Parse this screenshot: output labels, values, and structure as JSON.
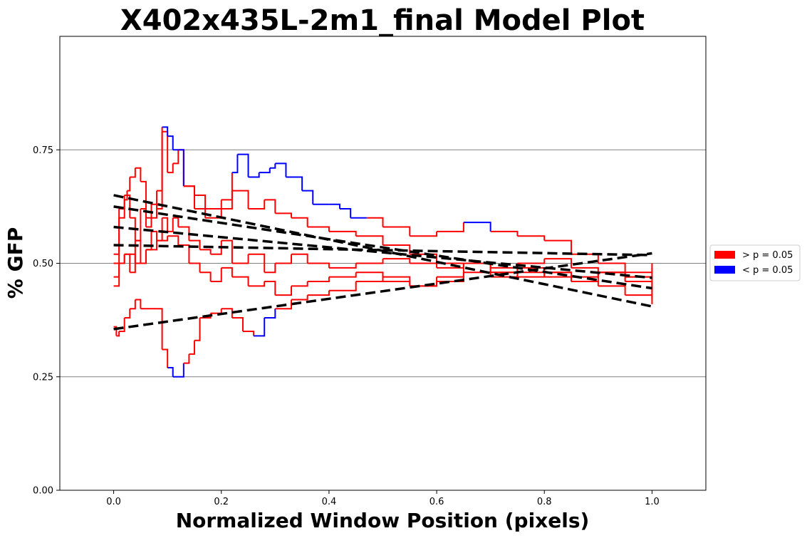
{
  "chart_data": {
    "type": "line",
    "title": "X402x435L-2m1_final Model Plot",
    "xlabel": "Normalized Window Position (pixels)",
    "ylabel": "% GFP",
    "xlim": [
      -0.1,
      1.1
    ],
    "ylim": [
      0.0,
      1.0
    ],
    "x_ticks": [
      0.0,
      0.2,
      0.4,
      0.6,
      0.8,
      1.0
    ],
    "x_tick_labels": [
      "0.0",
      "0.2",
      "0.4",
      "0.6",
      "0.8",
      "1.0"
    ],
    "y_ticks": [
      0.0,
      0.25,
      0.5,
      0.75
    ],
    "y_tick_labels": [
      "0.00",
      "0.25",
      "0.50",
      "0.75"
    ],
    "hlines": [
      0.25,
      0.5,
      0.75
    ],
    "hline_color": "#808080",
    "significant_color": "#0000ff",
    "nonsignificant_color": "#ff0000",
    "fit_color": "#000000",
    "legend": {
      "position": "right",
      "entries": [
        {
          "label": "> p = 0.05",
          "color": "#ff0000"
        },
        {
          "label": "< p = 0.05",
          "color": "#0000ff"
        }
      ]
    },
    "fit_lines": [
      {
        "x": [
          0.0,
          1.0
        ],
        "y": [
          0.65,
          0.405
        ]
      },
      {
        "x": [
          0.0,
          1.0
        ],
        "y": [
          0.625,
          0.445
        ]
      },
      {
        "x": [
          0.0,
          1.0
        ],
        "y": [
          0.58,
          0.468
        ]
      },
      {
        "x": [
          0.0,
          1.0
        ],
        "y": [
          0.54,
          0.518
        ]
      },
      {
        "x": [
          0.0,
          1.0
        ],
        "y": [
          0.355,
          0.522
        ]
      }
    ],
    "series": [
      {
        "points": [
          [
            0.0,
            0.47
          ],
          [
            0.01,
            0.62
          ],
          [
            0.02,
            0.64
          ],
          [
            0.025,
            0.66
          ],
          [
            0.03,
            0.69
          ],
          [
            0.04,
            0.71
          ],
          [
            0.05,
            0.68
          ],
          [
            0.06,
            0.6
          ],
          [
            0.07,
            0.63
          ],
          [
            0.08,
            0.62
          ],
          [
            0.09,
            0.79
          ],
          [
            0.1,
            0.7
          ],
          [
            0.11,
            0.72
          ],
          [
            0.12,
            0.75
          ],
          [
            0.13,
            0.67
          ],
          [
            0.15,
            0.62
          ],
          [
            0.17,
            0.6
          ],
          [
            0.2,
            0.62
          ],
          [
            0.22,
            0.66
          ],
          [
            0.25,
            0.62
          ],
          [
            0.28,
            0.64
          ],
          [
            0.3,
            0.61
          ],
          [
            0.33,
            0.6
          ],
          [
            0.36,
            0.58
          ],
          [
            0.4,
            0.57
          ],
          [
            0.45,
            0.56
          ],
          [
            0.5,
            0.54
          ],
          [
            0.55,
            0.52
          ],
          [
            0.6,
            0.5
          ],
          [
            0.65,
            0.5
          ],
          [
            0.7,
            0.49
          ],
          [
            0.75,
            0.49
          ],
          [
            0.8,
            0.48
          ],
          [
            0.85,
            0.46
          ],
          [
            0.9,
            0.45
          ],
          [
            0.95,
            0.43
          ],
          [
            1.0,
            0.41
          ]
        ],
        "significant": [
          false,
          false,
          false,
          false,
          false,
          false,
          false,
          false,
          false,
          false,
          false,
          false,
          false,
          false,
          false,
          false,
          false,
          false,
          false,
          false,
          false,
          false,
          false,
          false,
          false,
          false,
          false,
          false,
          false,
          false,
          false,
          false,
          false,
          false,
          false,
          false,
          false
        ]
      },
      {
        "points": [
          [
            0.0,
            0.52
          ],
          [
            0.01,
            0.6
          ],
          [
            0.02,
            0.65
          ],
          [
            0.03,
            0.6
          ],
          [
            0.04,
            0.55
          ],
          [
            0.05,
            0.62
          ],
          [
            0.06,
            0.58
          ],
          [
            0.07,
            0.6
          ],
          [
            0.08,
            0.66
          ],
          [
            0.09,
            0.8
          ],
          [
            0.1,
            0.78
          ],
          [
            0.11,
            0.75
          ],
          [
            0.12,
            0.75
          ],
          [
            0.13,
            0.67
          ],
          [
            0.15,
            0.65
          ],
          [
            0.17,
            0.62
          ],
          [
            0.2,
            0.64
          ],
          [
            0.22,
            0.7
          ],
          [
            0.23,
            0.74
          ],
          [
            0.25,
            0.69
          ],
          [
            0.27,
            0.7
          ],
          [
            0.29,
            0.71
          ],
          [
            0.3,
            0.72
          ],
          [
            0.32,
            0.69
          ],
          [
            0.35,
            0.66
          ],
          [
            0.37,
            0.63
          ],
          [
            0.4,
            0.63
          ],
          [
            0.42,
            0.62
          ],
          [
            0.44,
            0.6
          ],
          [
            0.47,
            0.6
          ],
          [
            0.5,
            0.58
          ],
          [
            0.55,
            0.56
          ],
          [
            0.6,
            0.57
          ],
          [
            0.65,
            0.59
          ],
          [
            0.7,
            0.57
          ],
          [
            0.75,
            0.56
          ],
          [
            0.8,
            0.55
          ],
          [
            0.85,
            0.52
          ],
          [
            0.9,
            0.5
          ],
          [
            0.95,
            0.48
          ],
          [
            1.0,
            0.5
          ]
        ],
        "significant": [
          false,
          false,
          false,
          false,
          false,
          false,
          false,
          false,
          false,
          true,
          true,
          true,
          true,
          false,
          false,
          false,
          false,
          true,
          true,
          true,
          true,
          true,
          true,
          true,
          true,
          true,
          true,
          true,
          true,
          false,
          false,
          false,
          false,
          true,
          false,
          false,
          false,
          false,
          false,
          false,
          false
        ]
      },
      {
        "points": [
          [
            0.0,
            0.45
          ],
          [
            0.01,
            0.5
          ],
          [
            0.02,
            0.52
          ],
          [
            0.03,
            0.48
          ],
          [
            0.04,
            0.55
          ],
          [
            0.05,
            0.5
          ],
          [
            0.06,
            0.53
          ],
          [
            0.07,
            0.57
          ],
          [
            0.08,
            0.55
          ],
          [
            0.09,
            0.6
          ],
          [
            0.1,
            0.57
          ],
          [
            0.11,
            0.6
          ],
          [
            0.12,
            0.58
          ],
          [
            0.14,
            0.55
          ],
          [
            0.16,
            0.53
          ],
          [
            0.18,
            0.52
          ],
          [
            0.2,
            0.55
          ],
          [
            0.22,
            0.5
          ],
          [
            0.25,
            0.52
          ],
          [
            0.28,
            0.48
          ],
          [
            0.3,
            0.5
          ],
          [
            0.33,
            0.52
          ],
          [
            0.36,
            0.5
          ],
          [
            0.4,
            0.49
          ],
          [
            0.45,
            0.5
          ],
          [
            0.5,
            0.51
          ],
          [
            0.55,
            0.5
          ],
          [
            0.6,
            0.49
          ],
          [
            0.65,
            0.5
          ],
          [
            0.7,
            0.48
          ],
          [
            0.75,
            0.48
          ],
          [
            0.8,
            0.47
          ],
          [
            0.85,
            0.46
          ],
          [
            0.9,
            0.48
          ],
          [
            0.95,
            0.47
          ],
          [
            1.0,
            0.49
          ]
        ],
        "significant": [
          false,
          false,
          false,
          false,
          false,
          false,
          false,
          false,
          false,
          false,
          false,
          false,
          false,
          false,
          false,
          false,
          false,
          false,
          false,
          false,
          false,
          false,
          false,
          false,
          false,
          false,
          false,
          false,
          false,
          false,
          false,
          false,
          false,
          false,
          false,
          false
        ]
      },
      {
        "points": [
          [
            0.0,
            0.5
          ],
          [
            0.02,
            0.52
          ],
          [
            0.04,
            0.5
          ],
          [
            0.06,
            0.53
          ],
          [
            0.08,
            0.55
          ],
          [
            0.1,
            0.56
          ],
          [
            0.12,
            0.54
          ],
          [
            0.14,
            0.5
          ],
          [
            0.16,
            0.48
          ],
          [
            0.18,
            0.46
          ],
          [
            0.2,
            0.49
          ],
          [
            0.22,
            0.47
          ],
          [
            0.25,
            0.45
          ],
          [
            0.28,
            0.46
          ],
          [
            0.3,
            0.43
          ],
          [
            0.33,
            0.45
          ],
          [
            0.36,
            0.46
          ],
          [
            0.4,
            0.47
          ],
          [
            0.45,
            0.48
          ],
          [
            0.5,
            0.46
          ],
          [
            0.55,
            0.45
          ],
          [
            0.6,
            0.46
          ],
          [
            0.65,
            0.48
          ],
          [
            0.7,
            0.47
          ],
          [
            0.75,
            0.5
          ],
          [
            0.8,
            0.51
          ],
          [
            0.85,
            0.49
          ],
          [
            0.9,
            0.48
          ],
          [
            0.95,
            0.46
          ],
          [
            1.0,
            0.43
          ]
        ],
        "significant": [
          false,
          false,
          false,
          false,
          false,
          false,
          false,
          false,
          false,
          false,
          false,
          false,
          false,
          false,
          false,
          false,
          false,
          false,
          false,
          false,
          false,
          false,
          false,
          false,
          false,
          false,
          false,
          false,
          false,
          false
        ]
      },
      {
        "points": [
          [
            0.0,
            0.36
          ],
          [
            0.005,
            0.34
          ],
          [
            0.01,
            0.35
          ],
          [
            0.02,
            0.38
          ],
          [
            0.03,
            0.4
          ],
          [
            0.04,
            0.42
          ],
          [
            0.05,
            0.4
          ],
          [
            0.06,
            0.4
          ],
          [
            0.08,
            0.4
          ],
          [
            0.09,
            0.31
          ],
          [
            0.1,
            0.27
          ],
          [
            0.11,
            0.25
          ],
          [
            0.12,
            0.25
          ],
          [
            0.13,
            0.28
          ],
          [
            0.14,
            0.3
          ],
          [
            0.15,
            0.33
          ],
          [
            0.16,
            0.38
          ],
          [
            0.18,
            0.39
          ],
          [
            0.2,
            0.4
          ],
          [
            0.22,
            0.38
          ],
          [
            0.24,
            0.35
          ],
          [
            0.26,
            0.34
          ],
          [
            0.28,
            0.38
          ],
          [
            0.3,
            0.4
          ],
          [
            0.33,
            0.42
          ],
          [
            0.36,
            0.43
          ],
          [
            0.4,
            0.44
          ],
          [
            0.45,
            0.46
          ],
          [
            0.5,
            0.47
          ],
          [
            0.55,
            0.45
          ],
          [
            0.6,
            0.47
          ],
          [
            0.65,
            0.5
          ],
          [
            0.7,
            0.48
          ],
          [
            0.75,
            0.47
          ],
          [
            0.8,
            0.48
          ],
          [
            0.85,
            0.47
          ],
          [
            0.9,
            0.48
          ],
          [
            0.95,
            0.47
          ],
          [
            1.0,
            0.42
          ]
        ],
        "significant": [
          false,
          false,
          false,
          false,
          false,
          false,
          false,
          false,
          false,
          false,
          true,
          true,
          true,
          false,
          false,
          false,
          false,
          false,
          false,
          false,
          false,
          true,
          true,
          false,
          false,
          false,
          false,
          false,
          false,
          false,
          false,
          false,
          false,
          false,
          false,
          false,
          false,
          false,
          false
        ]
      }
    ]
  }
}
